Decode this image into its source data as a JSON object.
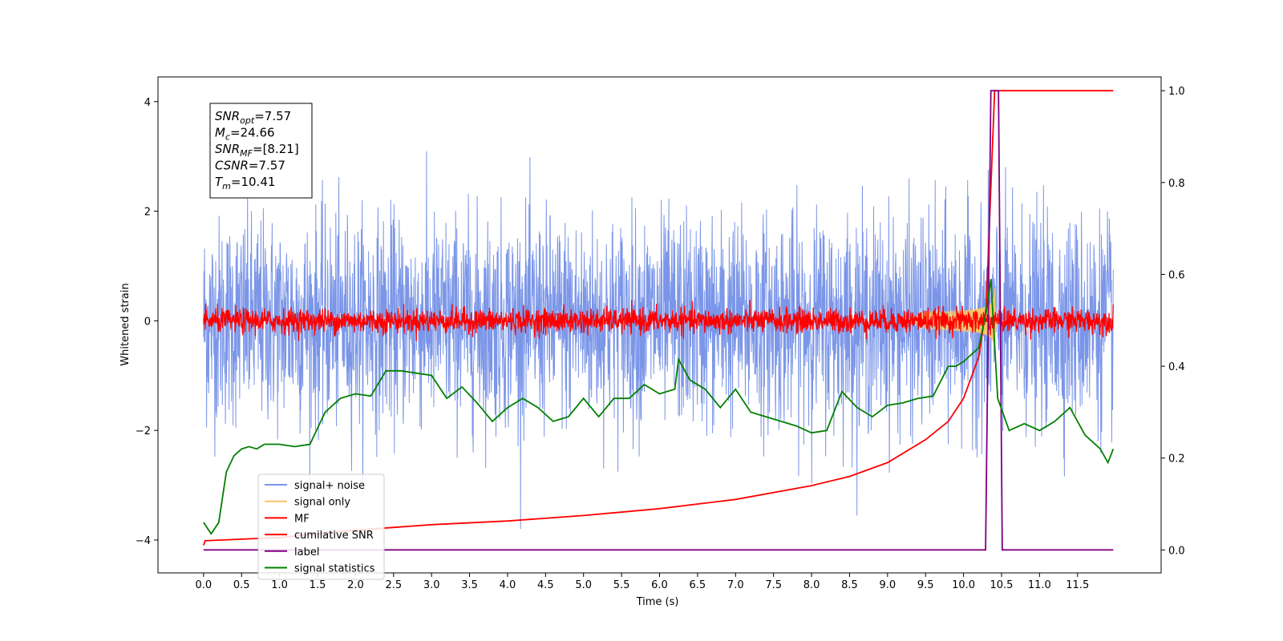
{
  "chart_data": {
    "type": "line",
    "xlabel": "Time (s)",
    "ylabel_left": "Whitened strain",
    "ylabel_right": "",
    "xlim": [
      -0.6,
      12.6
    ],
    "ylim_left": [
      -4.6,
      4.45
    ],
    "ylim_right": [
      -0.05,
      1.03
    ],
    "x_ticks": [
      "0.0",
      "0.5",
      "1.0",
      "1.5",
      "2.0",
      "2.5",
      "3.0",
      "3.5",
      "4.0",
      "4.5",
      "5.0",
      "5.5",
      "6.0",
      "6.5",
      "7.0",
      "7.5",
      "8.0",
      "8.5",
      "9.0",
      "9.5",
      "10.0",
      "10.5",
      "11.0",
      "11.5"
    ],
    "y_ticks_left": [
      "4",
      "2",
      "0",
      "−2",
      "−4"
    ],
    "y_ticks_right": [
      "1.0",
      "0.8",
      "0.6",
      "0.4",
      "0.2",
      "0.0"
    ],
    "annotation": {
      "lines": [
        {
          "main": "SNR",
          "sub": "opt",
          "value": "=7.57"
        },
        {
          "main": "M",
          "sub": "c",
          "value": "=24.66"
        },
        {
          "main": "SNR",
          "sub": "MF",
          "value": "=[8.21]"
        },
        {
          "main": "CSNR",
          "sub": "",
          "value": "=7.57"
        },
        {
          "main": "T",
          "sub": "m",
          "value": "=10.41"
        }
      ]
    },
    "legend_position": "bottom-left",
    "series": [
      {
        "name": "signal+ noise",
        "color": "#7b96e8",
        "axis": "left",
        "kind": "noise",
        "rms": 0.9
      },
      {
        "name": "signal only",
        "color": "#f5c66a",
        "axis": "left",
        "kind": "chirp",
        "peak": 0.6,
        "merger_time": 10.41
      },
      {
        "name": "MF",
        "color": "#ff0000",
        "axis": "left",
        "kind": "noise",
        "rms": 0.11
      },
      {
        "name": "cumilative SNR",
        "color": "#ff0000",
        "axis": "right",
        "x": [
          0.0,
          0.02,
          1.0,
          2.0,
          3.0,
          4.0,
          5.0,
          6.0,
          7.0,
          8.0,
          8.5,
          9.0,
          9.5,
          9.8,
          10.0,
          10.2,
          10.3,
          10.35,
          10.41,
          11.97
        ],
        "y": [
          0.01,
          0.02,
          0.027,
          0.043,
          0.055,
          0.063,
          0.075,
          0.09,
          0.11,
          0.14,
          0.16,
          0.19,
          0.24,
          0.28,
          0.33,
          0.42,
          0.53,
          0.75,
          1.0,
          1.0
        ]
      },
      {
        "name": "label",
        "color": "#800080",
        "axis": "right",
        "x": [
          0.0,
          10.29,
          10.36,
          10.46,
          10.51,
          11.97
        ],
        "y": [
          0.0,
          0.0,
          1.0,
          1.0,
          0.0,
          0.0
        ]
      },
      {
        "name": "signal statistics",
        "color": "#008000",
        "axis": "right",
        "x": [
          0.0,
          0.1,
          0.2,
          0.3,
          0.4,
          0.5,
          0.6,
          0.7,
          0.8,
          1.0,
          1.2,
          1.4,
          1.6,
          1.8,
          2.0,
          2.2,
          2.4,
          2.6,
          2.8,
          3.0,
          3.2,
          3.4,
          3.6,
          3.8,
          4.0,
          4.2,
          4.4,
          4.6,
          4.8,
          5.0,
          5.2,
          5.4,
          5.6,
          5.8,
          6.0,
          6.2,
          6.25,
          6.4,
          6.6,
          6.8,
          7.0,
          7.2,
          7.4,
          7.6,
          7.8,
          8.0,
          8.2,
          8.4,
          8.6,
          8.8,
          9.0,
          9.2,
          9.4,
          9.6,
          9.8,
          9.9,
          10.0,
          10.2,
          10.3,
          10.36,
          10.45,
          10.6,
          10.8,
          11.0,
          11.2,
          11.4,
          11.6,
          11.8,
          11.9,
          11.97
        ],
        "y": [
          0.06,
          0.035,
          0.06,
          0.17,
          0.205,
          0.22,
          0.225,
          0.22,
          0.23,
          0.23,
          0.225,
          0.23,
          0.3,
          0.33,
          0.34,
          0.335,
          0.39,
          0.39,
          0.385,
          0.38,
          0.33,
          0.355,
          0.32,
          0.28,
          0.31,
          0.33,
          0.31,
          0.28,
          0.29,
          0.33,
          0.29,
          0.33,
          0.33,
          0.36,
          0.34,
          0.35,
          0.415,
          0.37,
          0.35,
          0.31,
          0.35,
          0.3,
          0.29,
          0.28,
          0.27,
          0.255,
          0.26,
          0.345,
          0.31,
          0.29,
          0.315,
          0.32,
          0.33,
          0.335,
          0.4,
          0.4,
          0.41,
          0.44,
          0.52,
          0.59,
          0.33,
          0.26,
          0.275,
          0.26,
          0.28,
          0.31,
          0.25,
          0.22,
          0.19,
          0.22
        ]
      }
    ]
  }
}
